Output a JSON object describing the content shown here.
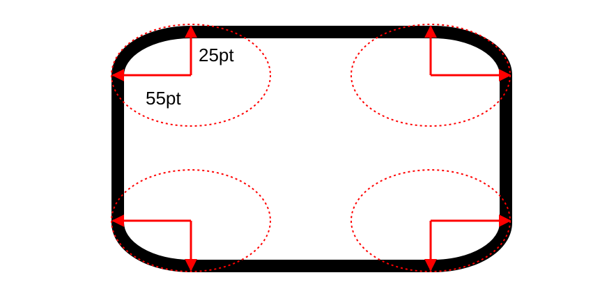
{
  "diagram": {
    "labels": {
      "vertical_radius": "25pt",
      "horizontal_radius": "55pt"
    },
    "colors": {
      "border": "#000000",
      "guide": "#ff0000",
      "background": "#ffffff"
    }
  }
}
